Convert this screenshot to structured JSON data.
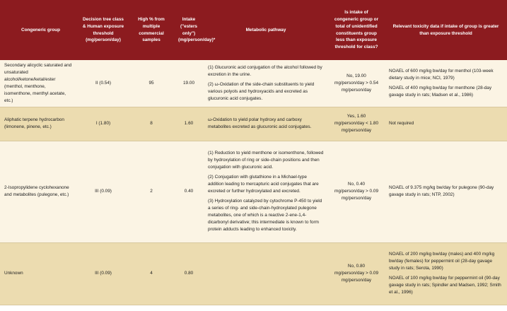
{
  "table": {
    "headers": [
      "Congeneric group",
      "Decision tree class & Human exposure threshold (mg/person/day)",
      "High % from multiple commercial samples",
      "Intake (\"esters only\") (mg/person/day)*",
      "Metabolic pathway",
      "Is intake of congeneric group or total of unidentified constituents group less than exposure threshold for class?",
      "Relevant toxicity data if intake of group is greater than exposure threshold"
    ],
    "rows": [
      [
        "Secondary alicyclic saturated and unsaturated alcohol/ketone/ketal/ester (menthol, menthone, isomenthone, menthyl acetate, etc.)",
        "II (0.54)",
        "95",
        "19.00",
        [
          "(1) Glucuronic acid conjugation of the alcohol followed by excretion in the urine.",
          "(2) ω-Oxidation of the side-chain substituents to yield various polyols and hydroxyacids and excreted as glucuronic acid conjugates."
        ],
        "No, 19.00 mg/person/day > 0.54 mg/person/day",
        [
          "NOAEL of 600 mg/kg bw/day for menthol (103-week dietary study in mice; NCI, 1979)",
          "NOAEL of 400 mg/kg bw/day for menthone (28-day gavage study in rats; Madsen et al., 1986)"
        ]
      ],
      [
        "Aliphatic terpene hydrocarbon (limonene, pinene, etc.)",
        "I (1.80)",
        "8",
        "1.60",
        [
          "ω-Oxidation to yield polar hydroxy and carboxy metabolites excreted as glucuronic acid conjugates."
        ],
        "Yes, 1.60 mg/person/day < 1.80 mg/person/day",
        [
          "Not required"
        ]
      ],
      [
        "2-Isopropylidene cyclohexanone and metabolites (pulegone, etc.)",
        "III (0.09)",
        "2",
        "0.40",
        [
          "(1) Reduction to yield menthone or isomenthone, followed by hydroxylation of ring or side-chain positions and then conjugation with glucuronic acid.",
          "(2) Conjugation with glutathione in a Michael-type addition leading to mercapturic acid conjugates that are excreted or further hydroxylated and excreted.",
          "(3) Hydroxylation catalyzed by cytochrome P-450 to yield a series of ring- and side-chain-hydroxylated pulegone metabolites, one of which is a reactive 2-ene-1,4-dicarbonyl derivative; this intermediate is known to form protein adducts leading to enhanced toxicity."
        ],
        "No, 0.40 mg/person/day > 0.09 mg/person/day",
        [
          "NOAEL of 9.375 mg/kg bw/day for pulegone (90-day gavage study in rats; NTP, 2002)"
        ]
      ],
      [
        "Unknown",
        "III (0.09)",
        "4",
        "0.80",
        [],
        "No, 0.80 mg/person/day > 0.09 mg/person/day",
        [
          "NOAEL of 200 mg/kg bw/day (males) and 400 mg/kg bw/day (females) for peppermint oil (28-day gavage study in rats; Serota, 1990)",
          "NOAEL of 100 mg/kg bw/day for peppermint oil (90-day gavage study in rats; Spindler and Madsen, 1992; Smith et al., 1996)"
        ]
      ]
    ]
  }
}
